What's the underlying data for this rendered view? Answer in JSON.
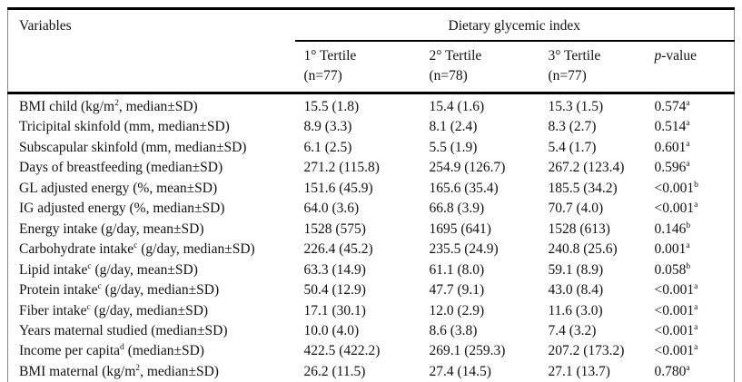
{
  "page": {
    "background_color": "#ffffff",
    "text_color": "#121212",
    "rule_color": "#000000",
    "side_border_color": "#8a8a8a"
  },
  "table": {
    "variables_header": "Variables",
    "spanner": "Dietary glycemic index",
    "columns": [
      {
        "line1": "1° Tertile",
        "line2": "(n=77)"
      },
      {
        "line1": "2° Tertile",
        "line2": "(n=78)"
      },
      {
        "line1": "3° Tertile",
        "line2": "(n=77)"
      }
    ],
    "p_header": {
      "italic": "p",
      "rest": "-value"
    },
    "rows": [
      {
        "var": "BMI child (kg/m",
        "var_sup": "2",
        "var_rest": ", median±SD)",
        "t1": "15.5 (1.8)",
        "t2": "15.4 (1.6)",
        "t3": "15.3 (1.5)",
        "p": "0.574",
        "p_sup": "a"
      },
      {
        "var": "Tricipital skinfold (mm, median±SD)",
        "var_sup": "",
        "var_rest": "",
        "t1": "8.9 (3.3)",
        "t2": "8.1 (2.4)",
        "t3": "8.3 (2.7)",
        "p": "0.514",
        "p_sup": "a"
      },
      {
        "var": "Subscapular skinfold (mm, median±SD)",
        "var_sup": "",
        "var_rest": "",
        "t1": "6.1 (2.5)",
        "t2": "5.5 (1.9)",
        "t3": "5.4 (1.7)",
        "p": "0.601",
        "p_sup": "a"
      },
      {
        "var": "Days of breastfeeding (median±SD)",
        "var_sup": "",
        "var_rest": "",
        "t1": "271.2 (115.8)",
        "t2": "254.9 (126.7)",
        "t3": "267.2 (123.4)",
        "p": "0.596",
        "p_sup": "a"
      },
      {
        "var": "GL adjusted energy (%, mean±SD)",
        "var_sup": "",
        "var_rest": "",
        "t1": "151.6 (45.9)",
        "t2": "165.6 (35.4)",
        "t3": "185.5 (34.2)",
        "p": "<0.001",
        "p_sup": "b"
      },
      {
        "var": "IG adjusted energy (%, median±SD)",
        "var_sup": "",
        "var_rest": "",
        "t1": "64.0 (3.6)",
        "t2": "66.8 (3.9)",
        "t3": "70.7 (4.0)",
        "p": "<0.001",
        "p_sup": "a"
      },
      {
        "var": "Energy intake (g/day, mean±SD)",
        "var_sup": "",
        "var_rest": "",
        "t1": "1528 (575)",
        "t2": "1695 (641)",
        "t3": "1528 (613)",
        "p": "0.146",
        "p_sup": "b"
      },
      {
        "var": "Carbohydrate intake",
        "var_sup": "c",
        "var_rest": " (g/day, median±SD)",
        "t1": "226.4 (45.2)",
        "t2": "235.5 (24.9)",
        "t3": "240.8 (25.6)",
        "p": "0.001",
        "p_sup": "a"
      },
      {
        "var": "Lipid intake",
        "var_sup": "c",
        "var_rest": " (g/day, mean±SD)",
        "t1": "63.3 (14.9)",
        "t2": "61.1 (8.0)",
        "t3": "59.1 (8.9)",
        "p": "0.058",
        "p_sup": "b"
      },
      {
        "var": "Protein intake",
        "var_sup": "c",
        "var_rest": " (g/day, median±SD)",
        "t1": "50.4 (12.9)",
        "t2": "47.7 (9.1)",
        "t3": "43.0 (8.4)",
        "p": "<0.001",
        "p_sup": "a"
      },
      {
        "var": "Fiber intake",
        "var_sup": "c",
        "var_rest": " (g/day, median±SD)",
        "t1": "17.1 (30.1)",
        "t2": "12.0 (2.9)",
        "t3": "11.6 (3.0)",
        "p": "<0.001",
        "p_sup": "a"
      },
      {
        "var": "Years maternal studied (median±SD)",
        "var_sup": "",
        "var_rest": "",
        "t1": "10.0 (4.0)",
        "t2": "8.6 (3.8)",
        "t3": "7.4 (3.2)",
        "p": "<0.001",
        "p_sup": "a"
      },
      {
        "var": "Income per capita",
        "var_sup": "d",
        "var_rest": " (median±SD)",
        "t1": "422.5 (422.2)",
        "t2": "269.1 (259.3)",
        "t3": "207.2 (173.2)",
        "p": "<0.001",
        "p_sup": "a"
      },
      {
        "var": "BMI maternal (kg/m",
        "var_sup": "2",
        "var_rest": ", median±SD)",
        "t1": "26.2 (11.5)",
        "t2": "27.4 (14.5)",
        "t3": "27.1 (13.7)",
        "p": "0.780",
        "p_sup": "a"
      }
    ]
  }
}
